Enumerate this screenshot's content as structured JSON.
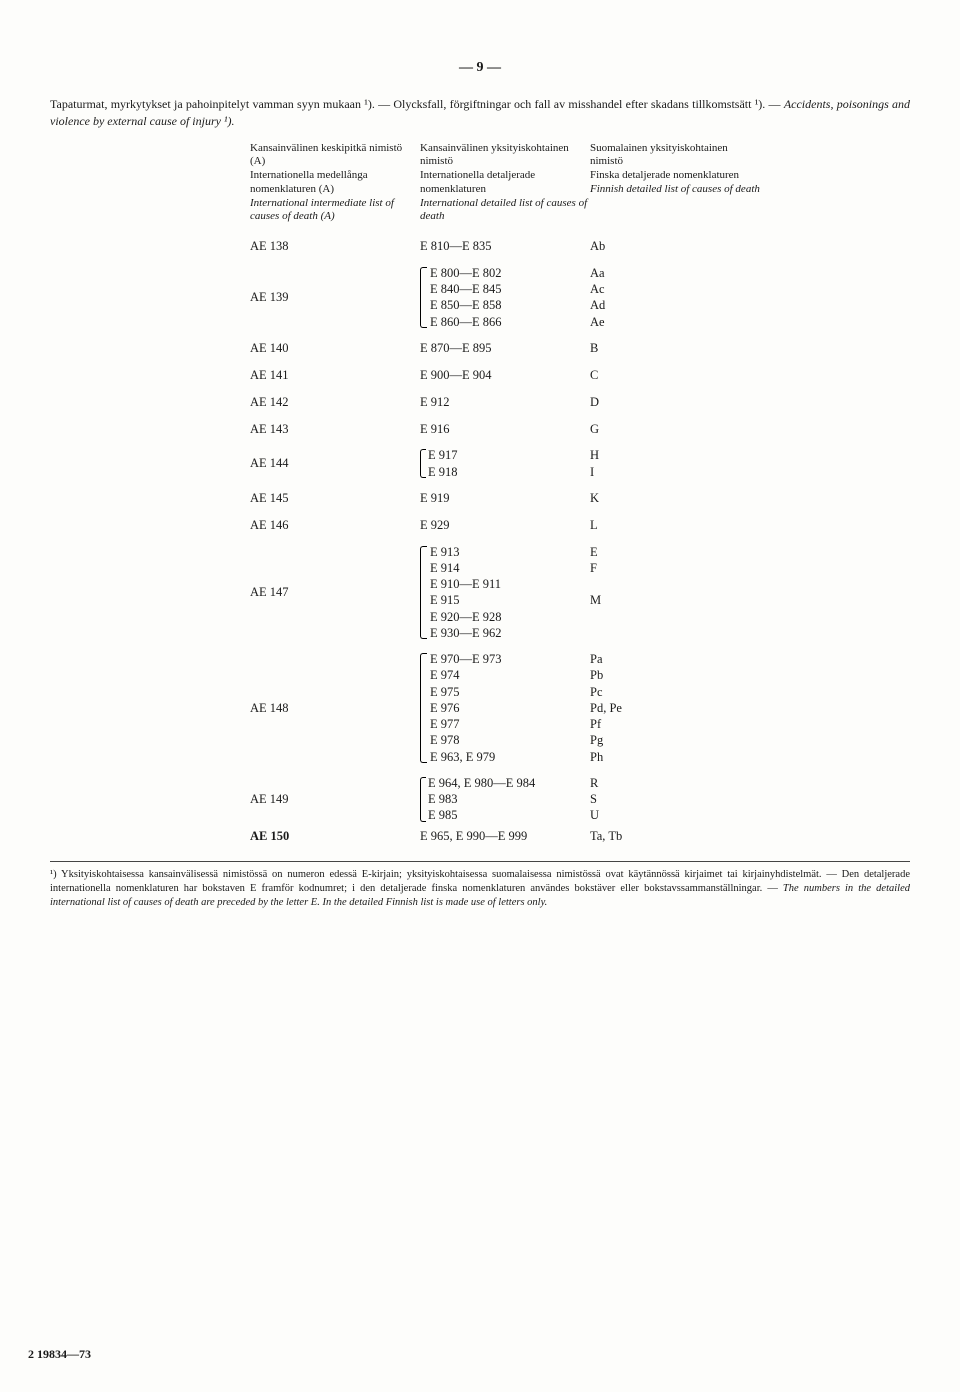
{
  "page_number": "— 9 —",
  "heading_line": "Tapaturmat, myrkytykset ja pahoinpitelyt vamman syyn mukaan ¹). — Olycksfall, förgiftningar och fall av misshandel efter skadans tillkomstsätt ¹). — ",
  "heading_italic": "Accidents, poisonings and violence by external cause of injury ¹).",
  "col_headers": {
    "a": {
      "fi": "Kansainvälinen keskipitkä nimistö (A)",
      "sv": "Internationella medellånga nomenklaturen (A)",
      "en": "International intermediate list of causes of death (A)"
    },
    "b": {
      "fi": "Kansainvälinen yksityiskohtainen nimistö",
      "sv": "Internationella detaljerade nomenklaturen",
      "en": "International detailed list of causes of death"
    },
    "c": {
      "fi": "Suomalainen yksityiskohtainen nimistö",
      "sv": "Finska detaljerade nomenklaturen",
      "en": "Finnish detailed list of causes of death"
    }
  },
  "rows": {
    "r138": {
      "a": "AE 138",
      "b": "E 810—E 835",
      "c": "Ab"
    },
    "r139": {
      "a": "AE 139",
      "b": [
        "E 800—E 802",
        "E 840—E 845",
        "E 850—E 858",
        "E 860—E 866"
      ],
      "c": [
        "Aa",
        "Ac",
        "Ad",
        "Ae"
      ]
    },
    "r140": {
      "a": "AE 140",
      "b": "E 870—E 895",
      "c": "B"
    },
    "r141": {
      "a": "AE 141",
      "b": "E 900—E 904",
      "c": "C"
    },
    "r142": {
      "a": "AE 142",
      "b": "E 912",
      "c": "D"
    },
    "r143": {
      "a": "AE 143",
      "b": "E 916",
      "c": "G"
    },
    "r144": {
      "a": "AE 144",
      "b": [
        "E 917",
        "E 918"
      ],
      "c": [
        "H",
        "I"
      ]
    },
    "r145": {
      "a": "AE 145",
      "b": "E 919",
      "c": "K"
    },
    "r146": {
      "a": "AE 146",
      "b": "E 929",
      "c": "L"
    },
    "r147": {
      "a": "AE 147",
      "b_top": [
        "E 913",
        "E 914"
      ],
      "b_bot": [
        "E 910—E 911",
        "E 915",
        "E 920—E 928",
        "E 930—E 962"
      ],
      "c_top": [
        "E",
        "F"
      ],
      "c_bot": "M"
    },
    "r148": {
      "a": "AE 148",
      "b": [
        "E 970—E 973",
        "E 974",
        "E 975",
        "E 976",
        "E 977",
        "E 978",
        "E 963, E 979"
      ],
      "c": [
        "Pa",
        "Pb",
        "Pc",
        "Pd,  Pe",
        "Pf",
        "Pg",
        "Ph"
      ]
    },
    "r149": {
      "a": "AE 149",
      "b": [
        "E 964, E 980—E 984",
        "E 983",
        "E 985"
      ],
      "c": [
        "R",
        "S",
        "U"
      ]
    },
    "r150": {
      "a": "AE 150",
      "b": "E 965, E 990—E 999",
      "c": "Ta,  Tb"
    }
  },
  "footnote": {
    "pre": "¹) Yksityiskohtaisessa kansainvälisessä nimistössä on numeron edessä E-kirjain; yksityiskohtaisessa suomalaisessa nimistössä ovat käytännössä kirjaimet tai kirjainyhdistelmät. — Den detaljerade internationella nomenklaturen har bokstaven E framför kodnumret; i den detaljerade finska nomenklaturen användes bokstäver eller bokstavssammanställningar. — ",
    "it": "The numbers in the detailed international list of causes of death are preceded by the letter E.  In the detailed Finnish list is made use of letters only."
  },
  "footer_mark": "2   19834—73"
}
